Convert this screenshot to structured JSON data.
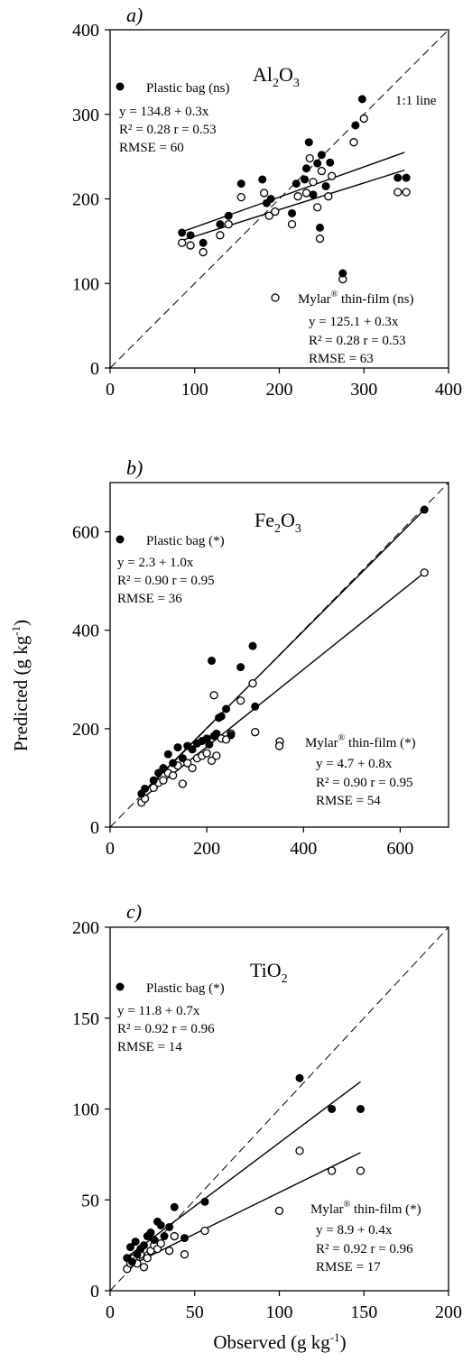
{
  "xlabel": "Observed (g kg",
  "xlabel_sup": "-1",
  "xlabel_close": ")",
  "ylabel": "Predicted (g kg",
  "ylabel_sup": "-1",
  "ylabel_close": ")",
  "chart_data": [
    {
      "type": "scatter",
      "panel": "a)",
      "title": {
        "base1": "Al",
        "sub1": "2",
        "base2": "O",
        "sub2": "3"
      },
      "xlim": [
        0,
        400
      ],
      "ylim": [
        0,
        400
      ],
      "xticks": [
        0,
        100,
        200,
        300,
        400
      ],
      "yticks": [
        0,
        100,
        200,
        300,
        400
      ],
      "one_to_one_label": "1:1 line",
      "legend_pb": {
        "label": "Plastic bag (ns)",
        "eq": "y = 134.8 + 0.3x",
        "r2": "R² = 0.28  r = 0.53",
        "rmse": "RMSE = 60"
      },
      "legend_mf": {
        "label_pre": "Mylar",
        "label_sup": "®",
        "label_post": " thin-film (ns)",
        "eq": "y = 125.1 + 0.3x",
        "r2": "R² = 0.28  r = 0.53",
        "rmse": "RMSE = 63"
      },
      "lines": {
        "pb": {
          "x": [
            82,
            348
          ],
          "y": [
            160,
            255
          ]
        },
        "mf": {
          "x": [
            82,
            348
          ],
          "y": [
            150,
            234
          ]
        }
      },
      "series": [
        {
          "name": "Plastic bag",
          "marker": "filled",
          "x": [
            85,
            95,
            110,
            130,
            140,
            155,
            180,
            185,
            190,
            215,
            220,
            230,
            235,
            232,
            240,
            245,
            250,
            248,
            255,
            260,
            275,
            290,
            298,
            340,
            350
          ],
          "y": [
            160,
            157,
            148,
            170,
            180,
            218,
            223,
            195,
            200,
            183,
            218,
            223,
            267,
            236,
            205,
            242,
            252,
            166,
            215,
            243,
            112,
            287,
            318,
            225,
            225
          ]
        },
        {
          "name": "Mylar thin-film",
          "marker": "open",
          "x": [
            85,
            95,
            110,
            130,
            140,
            155,
            182,
            188,
            195,
            215,
            222,
            232,
            236,
            240,
            245,
            248,
            250,
            258,
            262,
            275,
            288,
            300,
            340,
            350
          ],
          "y": [
            148,
            145,
            137,
            157,
            170,
            202,
            207,
            180,
            185,
            170,
            203,
            207,
            248,
            220,
            190,
            153,
            233,
            203,
            227,
            105,
            267,
            295,
            208,
            208
          ]
        }
      ]
    },
    {
      "type": "scatter",
      "panel": "b)",
      "title": {
        "base1": "Fe",
        "sub1": "2",
        "base2": "O",
        "sub2": "3"
      },
      "xlim": [
        0,
        700
      ],
      "ylim": [
        0,
        700
      ],
      "xticks": [
        0,
        200,
        400,
        600
      ],
      "yticks": [
        0,
        200,
        400,
        600
      ],
      "legend_pb": {
        "label": "Plastic bag (*)",
        "eq": "y = 2.3 + 1.0x",
        "r2": "R² = 0.90 r = 0.95",
        "rmse": "RMSE = 36"
      },
      "legend_mf": {
        "label_pre": "Mylar",
        "label_sup": "®",
        "label_post": " thin-film (*)",
        "eq": "y = 4.7 + 0.8x",
        "r2": "R² = 0.90 r = 0.95",
        "rmse": "RMSE = 54"
      },
      "lines": {
        "pb": {
          "x": [
            65,
            650
          ],
          "y": [
            68,
            645
          ]
        },
        "mf": {
          "x": [
            65,
            650
          ],
          "y": [
            57,
            517
          ]
        }
      },
      "series": [
        {
          "name": "Plastic bag",
          "marker": "filled",
          "x": [
            65,
            72,
            90,
            100,
            110,
            120,
            130,
            140,
            150,
            160,
            170,
            180,
            190,
            200,
            205,
            210,
            215,
            220,
            225,
            230,
            240,
            250,
            270,
            295,
            300,
            650
          ],
          "y": [
            68,
            78,
            95,
            110,
            120,
            148,
            130,
            162,
            140,
            165,
            158,
            170,
            175,
            180,
            168,
            338,
            185,
            190,
            222,
            225,
            240,
            187,
            325,
            368,
            245,
            645
          ]
        },
        {
          "name": "Mylar thin-film",
          "marker": "open",
          "x": [
            65,
            72,
            90,
            100,
            110,
            120,
            130,
            140,
            150,
            160,
            170,
            180,
            190,
            200,
            210,
            215,
            220,
            230,
            240,
            250,
            270,
            295,
            300,
            350,
            650
          ],
          "y": [
            50,
            58,
            80,
            90,
            95,
            110,
            105,
            125,
            88,
            130,
            120,
            140,
            145,
            150,
            135,
            268,
            145,
            180,
            178,
            190,
            257,
            292,
            193,
            165,
            517
          ]
        }
      ]
    },
    {
      "type": "scatter",
      "panel": "c)",
      "title": {
        "base1": "TiO",
        "sub1": "2",
        "base2": "",
        "sub2": ""
      },
      "xlim": [
        0,
        200
      ],
      "ylim": [
        0,
        200
      ],
      "xticks": [
        0,
        50,
        100,
        150,
        200
      ],
      "yticks": [
        0,
        50,
        100,
        150,
        200
      ],
      "legend_pb": {
        "label": "Plastic bag (*)",
        "eq": "y = 11.8 + 0.7x",
        "r2": "R² = 0.92  r = 0.96",
        "rmse": "RMSE = 14"
      },
      "legend_mf": {
        "label_pre": "Mylar",
        "label_sup": "®",
        "label_post": " thin-film (*)",
        "eq": "y = 8.9 + 0.4x",
        "r2": "R² = 0.92  r = 0.96",
        "rmse": "RMSE = 17"
      },
      "lines": {
        "pb": {
          "x": [
            10,
            148
          ],
          "y": [
            18.5,
            115
          ]
        },
        "mf": {
          "x": [
            10,
            148
          ],
          "y": [
            13,
            76
          ]
        }
      },
      "series": [
        {
          "name": "Plastic bag",
          "marker": "filled",
          "x": [
            10,
            12,
            13,
            15,
            16,
            18,
            20,
            22,
            24,
            26,
            28,
            30,
            32,
            35,
            38,
            44,
            56,
            112,
            131,
            148
          ],
          "y": [
            18,
            24,
            16,
            27,
            20,
            23,
            25,
            30,
            32,
            28,
            38,
            36,
            30,
            35,
            46,
            29,
            49,
            117,
            100,
            100
          ]
        },
        {
          "name": "Mylar thin-film",
          "marker": "open",
          "x": [
            10,
            12,
            14,
            16,
            18,
            20,
            22,
            24,
            26,
            28,
            30,
            35,
            38,
            44,
            56,
            100,
            112,
            131,
            148
          ],
          "y": [
            12,
            15,
            18,
            15,
            20,
            13,
            18,
            22,
            25,
            23,
            26,
            22,
            30,
            20,
            33,
            44,
            77,
            66,
            66
          ]
        }
      ]
    }
  ]
}
